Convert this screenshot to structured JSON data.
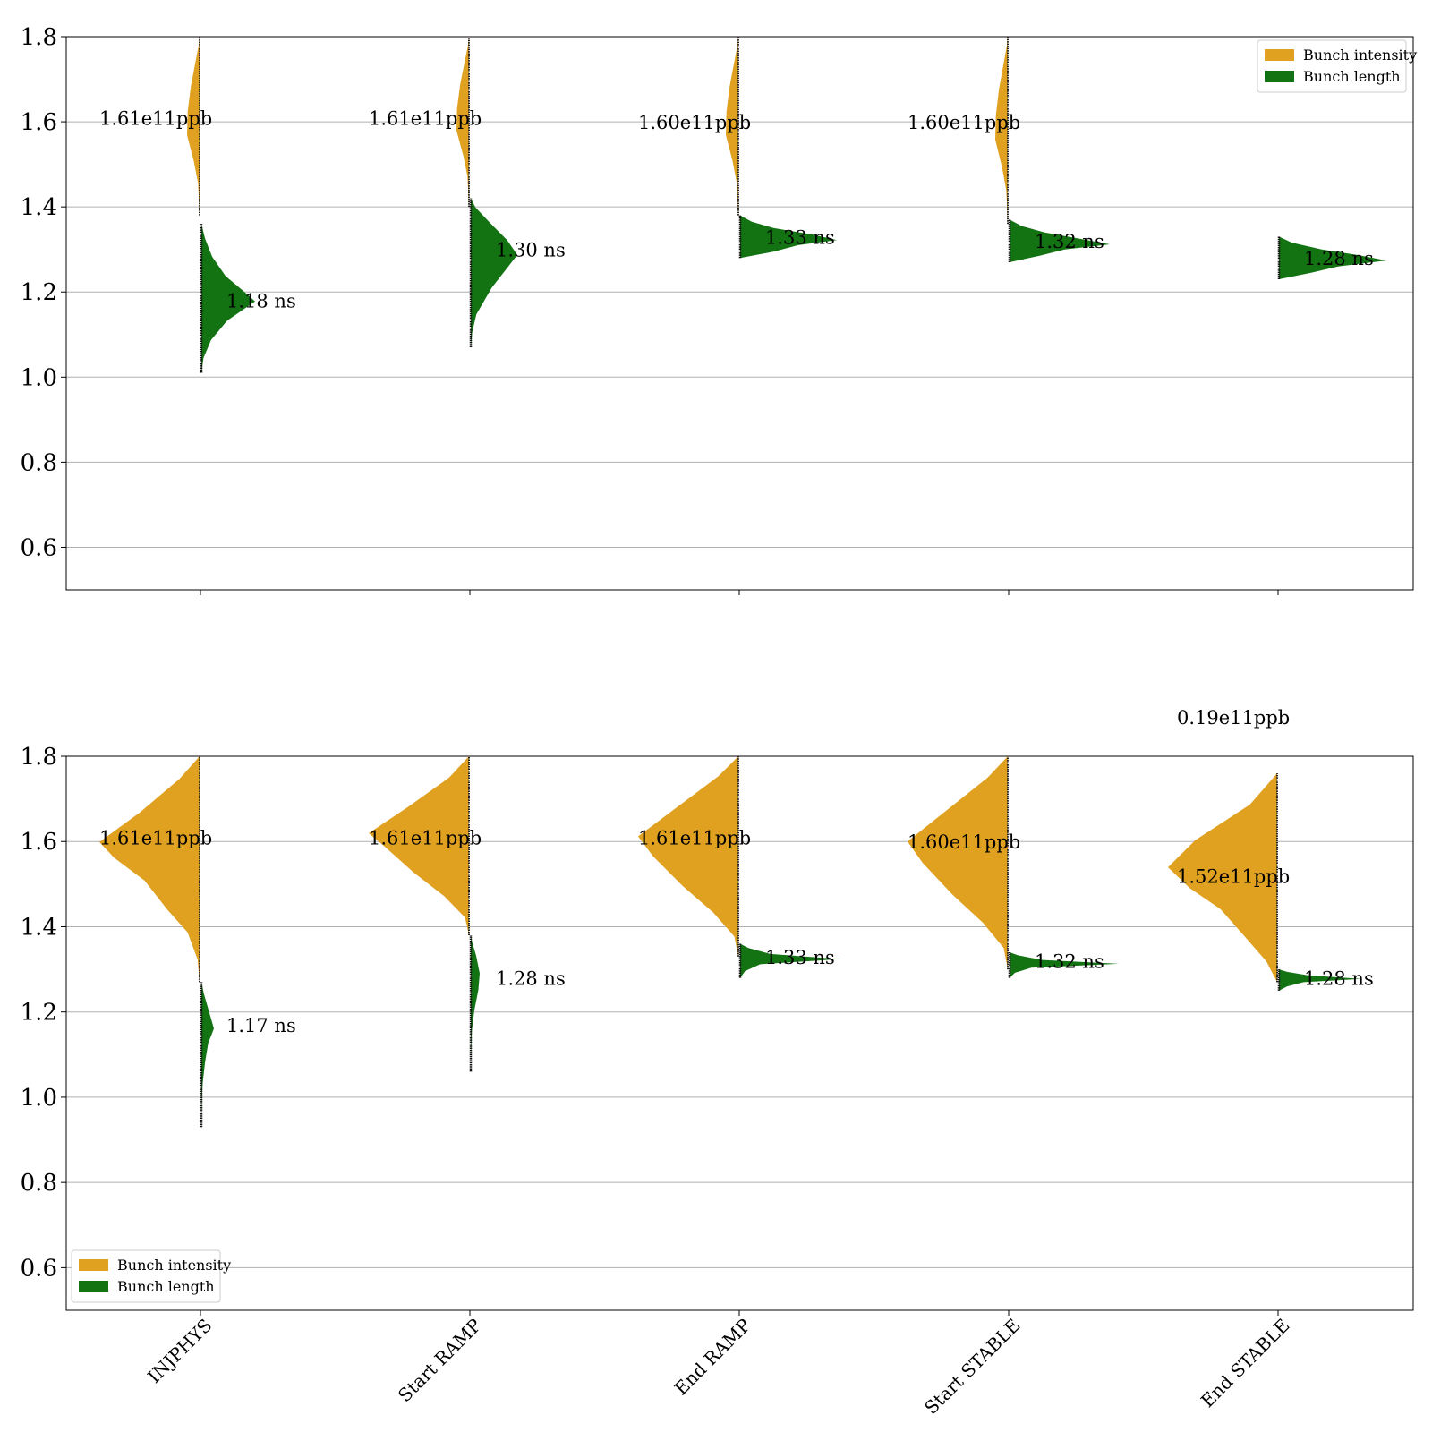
{
  "chart_data": [
    {
      "type": "violin",
      "panel": "top",
      "ylim": [
        0.5,
        1.8
      ],
      "yticks": [
        "0.6",
        "0.8",
        "1.0",
        "1.2",
        "1.4",
        "1.6",
        "1.8"
      ],
      "grid": "y",
      "legend": {
        "placement": "top-right",
        "entries": [
          "Bunch intensity",
          "Bunch length"
        ]
      },
      "categories": [
        "INJPHYS",
        "Start RAMP",
        "End RAMP",
        "Start STABLE",
        "End STABLE"
      ],
      "series": [
        {
          "name": "Bunch intensity",
          "color": "#e0a020",
          "side": "left",
          "violins": [
            {
              "center": 1.61,
              "range": [
                1.38,
                1.8
              ],
              "label": "1.61e11ppb"
            },
            {
              "center": 1.61,
              "range": [
                1.4,
                1.8
              ],
              "label": "1.61e11ppb"
            },
            {
              "center": 1.6,
              "range": [
                1.38,
                1.8
              ],
              "label": "1.60e11ppb"
            },
            {
              "center": 1.6,
              "range": [
                1.36,
                1.8
              ],
              "label": "1.60e11ppb"
            }
          ],
          "overflow_label": "0.19e11ppb"
        },
        {
          "name": "Bunch length",
          "color": "#137313",
          "side": "right",
          "violins": [
            {
              "center": 1.18,
              "range": [
                1.01,
                1.36
              ],
              "label": "1.18 ns"
            },
            {
              "center": 1.3,
              "range": [
                1.07,
                1.42
              ],
              "label": "1.30 ns"
            },
            {
              "center": 1.33,
              "range": [
                1.28,
                1.38
              ],
              "label": "1.33 ns"
            },
            {
              "center": 1.32,
              "range": [
                1.27,
                1.37
              ],
              "label": "1.32 ns"
            },
            {
              "center": 1.28,
              "range": [
                1.23,
                1.33
              ],
              "label": "1.28 ns"
            }
          ]
        }
      ]
    },
    {
      "type": "violin",
      "panel": "bottom",
      "ylim": [
        0.5,
        1.8
      ],
      "yticks": [
        "0.6",
        "0.8",
        "1.0",
        "1.2",
        "1.4",
        "1.6",
        "1.8"
      ],
      "grid": "y",
      "legend": {
        "placement": "bottom-left",
        "entries": [
          "Bunch intensity",
          "Bunch length"
        ]
      },
      "categories": [
        "INJPHYS",
        "Start RAMP",
        "End RAMP",
        "Start STABLE",
        "End STABLE"
      ],
      "series": [
        {
          "name": "Bunch intensity",
          "color": "#e0a020",
          "side": "left",
          "violins": [
            {
              "center": 1.61,
              "range": [
                1.27,
                1.8
              ],
              "label": "1.61e11ppb"
            },
            {
              "center": 1.61,
              "range": [
                1.38,
                1.8
              ],
              "label": "1.61e11ppb"
            },
            {
              "center": 1.61,
              "range": [
                1.33,
                1.8
              ],
              "label": "1.61e11ppb"
            },
            {
              "center": 1.6,
              "range": [
                1.3,
                1.8
              ],
              "label": "1.60e11ppb"
            },
            {
              "center": 1.52,
              "range": [
                1.27,
                1.76
              ],
              "label": "1.52e11ppb"
            }
          ]
        },
        {
          "name": "Bunch length",
          "color": "#137313",
          "side": "right",
          "violins": [
            {
              "center": 1.17,
              "range": [
                0.93,
                1.27
              ],
              "label": "1.17 ns"
            },
            {
              "center": 1.28,
              "range": [
                1.06,
                1.38
              ],
              "label": "1.28 ns"
            },
            {
              "center": 1.33,
              "range": [
                1.28,
                1.36
              ],
              "label": "1.33 ns"
            },
            {
              "center": 1.32,
              "range": [
                1.28,
                1.34
              ],
              "label": "1.32 ns"
            },
            {
              "center": 1.28,
              "range": [
                1.25,
                1.3
              ],
              "label": "1.28 ns"
            }
          ]
        }
      ]
    }
  ]
}
